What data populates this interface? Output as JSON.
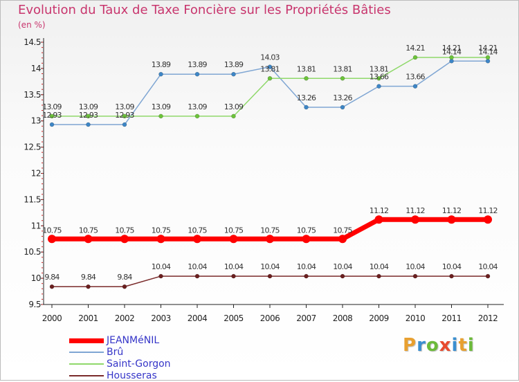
{
  "title": "Evolution du Taux de Taxe Foncière sur les Propriétés Bâties",
  "subtitle": "(en %)",
  "brand": {
    "text": "Proxiti",
    "letter_colors": [
      "#e8a030",
      "#3a8fd0",
      "#6cba3a",
      "#e84a2e",
      "#3a8fd0",
      "#e8a030",
      "#6cba3a"
    ]
  },
  "chart_data": {
    "type": "line",
    "x": [
      "2000",
      "2001",
      "2002",
      "2003",
      "2004",
      "2005",
      "2006",
      "2007",
      "2008",
      "2009",
      "2010",
      "2011",
      "2012"
    ],
    "ylim": [
      9.5,
      14.5
    ],
    "yticks": [
      "9.5",
      "10",
      "10.5",
      "11",
      "11.5",
      "12",
      "12.5",
      "13",
      "13.5",
      "14",
      "14.5"
    ],
    "grid": false,
    "legend_position": "bottom-left",
    "series": [
      {
        "name": "JEANMéNIL",
        "color": "#ff0000",
        "values": [
          10.75,
          10.75,
          10.75,
          10.75,
          10.75,
          10.75,
          10.75,
          10.75,
          10.75,
          11.12,
          11.12,
          11.12,
          11.12
        ],
        "labels": [
          "10.75",
          "10.75",
          "10.75",
          "10.75",
          "10.75",
          "10.75",
          "10.75",
          "10.75",
          "10.75",
          "11.12",
          "11.12",
          "11.12",
          "11.12"
        ]
      },
      {
        "name": "Brû",
        "color": "#7fa6d3",
        "point_color": "#3d86c6",
        "values": [
          12.93,
          12.93,
          12.93,
          13.89,
          13.89,
          13.89,
          14.03,
          13.26,
          13.26,
          13.66,
          13.66,
          14.14,
          14.14
        ],
        "labels": [
          "12.93",
          "12.93",
          "12.93",
          "13.89",
          "13.89",
          "13.89",
          "14.03",
          "13.26",
          "13.26",
          "13.66",
          "13.66",
          "14.14",
          "14.14"
        ]
      },
      {
        "name": "Saint-Gorgon",
        "color": "#8fd86a",
        "point_color": "#6cc33a",
        "values": [
          13.09,
          13.09,
          13.09,
          13.09,
          13.09,
          13.09,
          13.81,
          13.81,
          13.81,
          13.81,
          14.21,
          14.21,
          14.21
        ],
        "labels": [
          "13.09",
          "13.09",
          "13.09",
          "13.09",
          "13.09",
          "13.09",
          "13.81",
          "13.81",
          "13.81",
          "13.81",
          "14.21",
          "14.21",
          "14.21"
        ]
      },
      {
        "name": "Housseras",
        "color": "#7a2a2a",
        "point_color": "#6b1f1f",
        "values": [
          9.84,
          9.84,
          9.84,
          10.04,
          10.04,
          10.04,
          10.04,
          10.04,
          10.04,
          10.04,
          10.04,
          10.04,
          10.04
        ],
        "labels": [
          "9.84",
          "9.84",
          "9.84",
          "10.04",
          "10.04",
          "10.04",
          "10.04",
          "10.04",
          "10.04",
          "10.04",
          "10.04",
          "10.04",
          "10.04"
        ]
      }
    ]
  }
}
